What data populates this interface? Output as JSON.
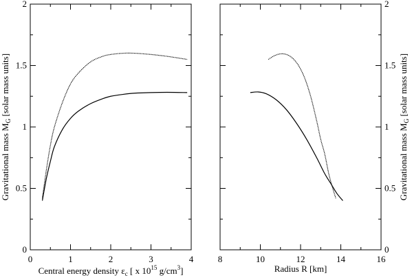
{
  "chart_data": [
    {
      "type": "line",
      "xlim": [
        0,
        4
      ],
      "ylim": [
        0,
        2
      ],
      "x_ticks": [
        "0",
        "1",
        "2",
        "3",
        "4"
      ],
      "y_ticks": [
        "0",
        "0.5",
        "1",
        "1.5",
        "2"
      ],
      "xlabel_main": "Central energy density ε",
      "xlabel_sub": "c",
      "xlabel_mid": " [ x 10",
      "xlabel_sup": "15",
      "xlabel_end": " g/cm",
      "xlabel_sup2": "3",
      "xlabel_close": "]",
      "ylabel_main": "Gravitational mass M",
      "ylabel_sub": "G",
      "ylabel_end": " [solar mass units]",
      "grid": false,
      "series": [
        {
          "style": "dotted",
          "x": [
            0.3,
            0.4,
            0.5,
            0.6,
            0.8,
            1.0,
            1.2,
            1.5,
            1.8,
            2.0,
            2.3,
            2.6,
            3.0,
            3.4,
            3.9
          ],
          "y": [
            0.42,
            0.65,
            0.85,
            1.0,
            1.2,
            1.35,
            1.44,
            1.53,
            1.575,
            1.59,
            1.6,
            1.6,
            1.59,
            1.575,
            1.55
          ]
        },
        {
          "style": "solid",
          "x": [
            0.3,
            0.4,
            0.5,
            0.6,
            0.8,
            1.0,
            1.2,
            1.5,
            1.8,
            2.0,
            2.3,
            2.6,
            3.0,
            3.4,
            3.9
          ],
          "y": [
            0.4,
            0.58,
            0.72,
            0.84,
            0.98,
            1.07,
            1.13,
            1.19,
            1.23,
            1.25,
            1.265,
            1.275,
            1.28,
            1.282,
            1.28
          ]
        }
      ]
    },
    {
      "type": "line",
      "xlim": [
        8,
        16
      ],
      "ylim": [
        0,
        2
      ],
      "x_ticks": [
        "8",
        "10",
        "12",
        "14",
        "16"
      ],
      "y_ticks": [
        "0",
        "0.5",
        "1",
        "1.5",
        "2"
      ],
      "xlabel": "Radius R [km]",
      "ylabel_main": "Gravitational mass M",
      "ylabel_sub": "G",
      "ylabel_end": " [solar mass units]",
      "grid": false,
      "series": [
        {
          "style": "dotted",
          "x": [
            10.4,
            10.7,
            11.0,
            11.3,
            11.6,
            11.9,
            12.2,
            12.5,
            12.8,
            13.0,
            13.2,
            13.4,
            13.6,
            13.75
          ],
          "y": [
            1.55,
            1.58,
            1.595,
            1.59,
            1.56,
            1.5,
            1.4,
            1.25,
            1.05,
            0.9,
            0.78,
            0.62,
            0.5,
            0.42
          ]
        },
        {
          "style": "solid",
          "x": [
            9.5,
            9.9,
            10.3,
            10.8,
            11.3,
            11.8,
            12.3,
            12.8,
            13.2,
            13.5,
            13.8,
            14.1
          ],
          "y": [
            1.28,
            1.285,
            1.27,
            1.22,
            1.14,
            1.03,
            0.9,
            0.75,
            0.62,
            0.54,
            0.46,
            0.4
          ]
        }
      ]
    }
  ]
}
